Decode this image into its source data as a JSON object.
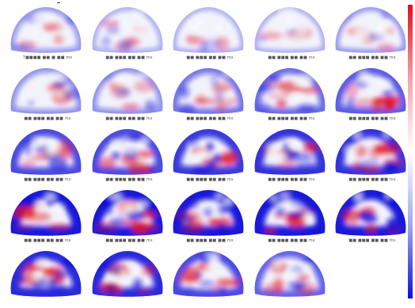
{
  "colors": {
    "negative": "#1010d8",
    "neutral": "#ffffff",
    "positive": "#e01020",
    "background": "#ffffff"
  },
  "maps": [
    {
      "caption": "7■■■■ ■■ ■ ■■ ms",
      "red": 0.35,
      "blue": 0.25,
      "pattern": 0
    },
    {
      "caption": "■■ ■■■ ■■ ■■ ms",
      "red": 0.25,
      "blue": 0.15,
      "pattern": 1
    },
    {
      "caption": "■■ ■■■ ■■ ■■ ms",
      "red": 0.1,
      "blue": 0.1,
      "pattern": 2
    },
    {
      "caption": "■■ ■■■ ■■ ■■ ms",
      "red": 0.1,
      "blue": 0.1,
      "pattern": 3
    },
    {
      "caption": "■■ ■■■ ■■ ■■ ms",
      "red": 0.15,
      "blue": 0.2,
      "pattern": 4
    },
    {
      "caption": "■■ ■■■ ■■ ■■ ms",
      "red": 0.35,
      "blue": 0.3,
      "pattern": 5
    },
    {
      "caption": "■■ ■■■ ■■ ■■ ms",
      "red": 0.35,
      "blue": 0.3,
      "pattern": 6
    },
    {
      "caption": "■■ ■■■ ■■ ■■ ms",
      "red": 0.4,
      "blue": 0.45,
      "pattern": 7
    },
    {
      "caption": "■■ ■■■ ■■ ■■ ms",
      "red": 0.65,
      "blue": 0.5,
      "pattern": 8
    },
    {
      "caption": "■■ ■■■ ■■ ■■ ms",
      "red": 0.9,
      "blue": 0.6,
      "pattern": 9
    },
    {
      "caption": "■■ ■■■ ■■ ■■ ms",
      "red": 0.75,
      "blue": 0.7,
      "pattern": 10
    },
    {
      "caption": "■■ ■■■ ■■ ■■ ms",
      "red": 0.75,
      "blue": 0.7,
      "pattern": 11
    },
    {
      "caption": "■■ ■■■ ■■ ■■ ms",
      "red": 0.8,
      "blue": 0.8,
      "pattern": 12
    },
    {
      "caption": "■■ ■■■ ■■ ■■ ms",
      "red": 0.85,
      "blue": 0.85,
      "pattern": 13
    },
    {
      "caption": "■■ ■■■ ■■ ■■ ms",
      "red": 0.85,
      "blue": 0.85,
      "pattern": 14
    },
    {
      "caption": "■■ ■■■ ■■ ■■ ms",
      "red": 0.85,
      "blue": 1.0,
      "pattern": 15
    },
    {
      "caption": "■■ ■■■ ■■ ■■ ms",
      "red": 0.85,
      "blue": 1.0,
      "pattern": 16
    },
    {
      "caption": "■■ ■■■ ■■ ■■ ms",
      "red": 0.85,
      "blue": 1.0,
      "pattern": 17
    },
    {
      "caption": "■■ ■■■ ■■ ■■ ms",
      "red": 0.85,
      "blue": 1.0,
      "pattern": 18
    },
    {
      "caption": "■■ ■■■ ■■ ■■ ms",
      "red": 0.85,
      "blue": 1.0,
      "pattern": 19
    },
    {
      "caption": "",
      "red": 0.8,
      "blue": 0.9,
      "pattern": 20
    },
    {
      "caption": "",
      "red": 0.75,
      "blue": 0.9,
      "pattern": 21
    },
    {
      "caption": "",
      "red": 0.6,
      "blue": 0.7,
      "pattern": 22
    },
    {
      "caption": "",
      "red": 0.45,
      "blue": 0.55,
      "pattern": 23
    }
  ]
}
